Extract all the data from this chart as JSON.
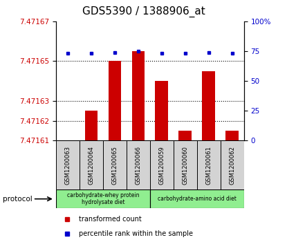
{
  "title": "GDS5390 / 1388906_at",
  "categories": [
    "GSM1200063",
    "GSM1200064",
    "GSM1200065",
    "GSM1200066",
    "GSM1200059",
    "GSM1200060",
    "GSM1200061",
    "GSM1200062"
  ],
  "transformed_count": [
    7.47161,
    7.471625,
    7.47165,
    7.471655,
    7.47164,
    7.471615,
    7.471645,
    7.471615
  ],
  "percentile_rank": [
    73,
    73,
    74,
    75,
    73,
    73,
    74,
    73
  ],
  "ylim_left": [
    7.47161,
    7.47167
  ],
  "ylim_right": [
    0,
    100
  ],
  "yticks_left": [
    7.47161,
    7.47162,
    7.47163,
    7.47165,
    7.47167
  ],
  "yticks_right": [
    0,
    25,
    50,
    75,
    100
  ],
  "ytick_labels_left": [
    "7.47161",
    "7.47162",
    "7.47163",
    "7.47165",
    "7.47167"
  ],
  "ytick_labels_right": [
    "0",
    "25",
    "50",
    "75",
    "100%"
  ],
  "grid_lines": [
    7.47162,
    7.47163,
    7.47165
  ],
  "bar_color": "#cc0000",
  "dot_color": "#0000cc",
  "protocol_groups": [
    {
      "label": "carbohydrate-whey protein\nhydrolysate diet",
      "indices": [
        0,
        1,
        2,
        3
      ],
      "color": "#90ee90"
    },
    {
      "label": "carbohydrate-amino acid diet",
      "indices": [
        4,
        5,
        6,
        7
      ],
      "color": "#90ee90"
    }
  ],
  "protocol_label": "protocol",
  "legend_items": [
    {
      "color": "#cc0000",
      "label": "transformed count"
    },
    {
      "color": "#0000cc",
      "label": "percentile rank within the sample"
    }
  ],
  "title_fontsize": 11,
  "tick_fontsize": 7.5,
  "bar_width": 0.55,
  "background_plot": "#ffffff",
  "cell_bg": "#d3d3d3"
}
